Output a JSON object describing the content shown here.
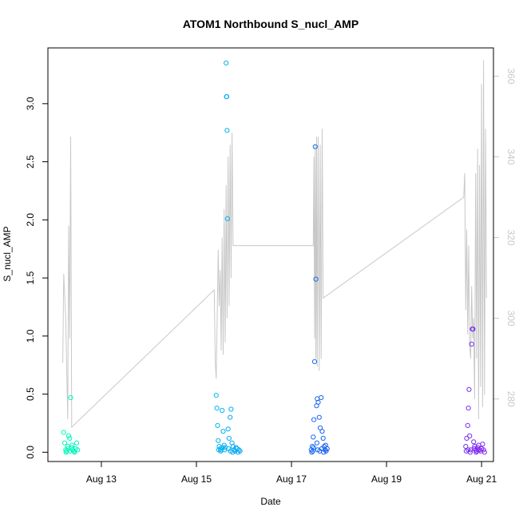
{
  "chart_data": {
    "type": "scatter",
    "title": "ATOM1 Northbound S_nucl_AMP",
    "xlabel": "Date",
    "ylabel": "S_nucl_AMP",
    "ylabel_right": "",
    "xlim": [
      "2024-08-11T21:00",
      "2024-08-21T06:00"
    ],
    "ylim": [
      -0.08,
      3.48
    ],
    "ylim_right": [
      264.5,
      367
    ],
    "x_ticks": [
      {
        "label": "Aug 13",
        "value": "2024-08-13T00:00"
      },
      {
        "label": "Aug 15",
        "value": "2024-08-15T00:00"
      },
      {
        "label": "Aug 17",
        "value": "2024-08-17T00:00"
      },
      {
        "label": "Aug 19",
        "value": "2024-08-19T00:00"
      },
      {
        "label": "Aug 21",
        "value": "2024-08-21T00:00"
      }
    ],
    "y_ticks": [
      "0.0",
      "0.5",
      "1.0",
      "1.5",
      "2.0",
      "2.5",
      "3.0"
    ],
    "y_ticks_right": [
      "280",
      "300",
      "320",
      "340",
      "360"
    ],
    "grid": false,
    "colors": {
      "line": "#c8c8c8",
      "right_axis": "#c8c8c8",
      "point_gradient": [
        "#00ffb0",
        "#00c8f0",
        "#1e50f0",
        "#8c28f0"
      ]
    },
    "series": [
      {
        "kind": "points",
        "axis": "left",
        "points": [
          [
            "2024-08-12T05:00",
            0.17
          ],
          [
            "2024-08-12T05:30",
            0.08
          ],
          [
            "2024-08-12T06:00",
            0.02
          ],
          [
            "2024-08-12T06:30",
            0.01
          ],
          [
            "2024-08-12T07:00",
            0.05
          ],
          [
            "2024-08-12T07:30",
            0.14
          ],
          [
            "2024-08-12T08:00",
            0.12
          ],
          [
            "2024-08-12T08:30",
            0.47
          ],
          [
            "2024-08-12T09:00",
            0.04
          ],
          [
            "2024-08-12T09:30",
            0.02
          ],
          [
            "2024-08-12T10:00",
            0.01
          ],
          [
            "2024-08-12T10:30",
            0.0
          ],
          [
            "2024-08-12T11:00",
            0.03
          ],
          [
            "2024-08-12T11:30",
            0.08
          ],
          [
            "2024-08-12T12:00",
            0.02
          ],
          [
            "2024-08-12T06:10",
            0.0
          ],
          [
            "2024-08-12T07:10",
            0.03
          ],
          [
            "2024-08-12T08:10",
            0.01
          ],
          [
            "2024-08-12T09:10",
            0.06
          ],
          [
            "2024-08-12T10:10",
            0.01
          ],
          [
            "2024-08-15T10:00",
            0.49
          ],
          [
            "2024-08-15T10:20",
            0.38
          ],
          [
            "2024-08-15T10:40",
            0.23
          ],
          [
            "2024-08-15T11:00",
            0.1
          ],
          [
            "2024-08-15T11:30",
            0.05
          ],
          [
            "2024-08-15T12:00",
            0.03
          ],
          [
            "2024-08-15T12:30",
            0.02
          ],
          [
            "2024-08-15T13:00",
            0.36
          ],
          [
            "2024-08-15T13:30",
            0.18
          ],
          [
            "2024-08-15T14:00",
            0.06
          ],
          [
            "2024-08-15T14:30",
            0.04
          ],
          [
            "2024-08-15T15:00",
            3.35
          ],
          [
            "2024-08-15T15:10",
            3.06
          ],
          [
            "2024-08-15T15:20",
            3.06
          ],
          [
            "2024-08-15T15:30",
            2.77
          ],
          [
            "2024-08-15T15:40",
            2.01
          ],
          [
            "2024-08-15T16:00",
            0.2
          ],
          [
            "2024-08-15T16:30",
            0.12
          ],
          [
            "2024-08-15T17:00",
            0.3
          ],
          [
            "2024-08-15T17:30",
            0.37
          ],
          [
            "2024-08-15T18:00",
            0.08
          ],
          [
            "2024-08-15T18:30",
            0.05
          ],
          [
            "2024-08-15T19:00",
            0.02
          ],
          [
            "2024-08-15T19:30",
            0.01
          ],
          [
            "2024-08-15T20:00",
            0.04
          ],
          [
            "2024-08-15T20:30",
            0.03
          ],
          [
            "2024-08-15T21:00",
            0.0
          ],
          [
            "2024-08-15T21:30",
            0.02
          ],
          [
            "2024-08-15T22:00",
            0.01
          ],
          [
            "2024-08-15T11:15",
            0.02
          ],
          [
            "2024-08-15T12:15",
            0.01
          ],
          [
            "2024-08-15T13:15",
            0.04
          ],
          [
            "2024-08-15T14:15",
            0.02
          ],
          [
            "2024-08-15T16:15",
            0.03
          ],
          [
            "2024-08-15T17:15",
            0.01
          ],
          [
            "2024-08-15T18:15",
            0.0
          ],
          [
            "2024-08-17T10:00",
            0.02
          ],
          [
            "2024-08-17T10:30",
            0.05
          ],
          [
            "2024-08-17T11:00",
            0.13
          ],
          [
            "2024-08-17T11:20",
            0.28
          ],
          [
            "2024-08-17T11:40",
            0.78
          ],
          [
            "2024-08-17T12:00",
            2.63
          ],
          [
            "2024-08-17T12:20",
            1.49
          ],
          [
            "2024-08-17T12:40",
            0.4
          ],
          [
            "2024-08-17T13:00",
            0.46
          ],
          [
            "2024-08-17T13:30",
            0.43
          ],
          [
            "2024-08-17T14:00",
            0.3
          ],
          [
            "2024-08-17T14:30",
            0.21
          ],
          [
            "2024-08-17T15:00",
            0.47
          ],
          [
            "2024-08-17T15:30",
            0.18
          ],
          [
            "2024-08-17T16:00",
            0.12
          ],
          [
            "2024-08-17T16:30",
            0.05
          ],
          [
            "2024-08-17T17:00",
            0.02
          ],
          [
            "2024-08-17T17:30",
            0.01
          ],
          [
            "2024-08-17T18:00",
            0.03
          ],
          [
            "2024-08-17T10:15",
            0.0
          ],
          [
            "2024-08-17T10:45",
            0.01
          ],
          [
            "2024-08-17T11:10",
            0.04
          ],
          [
            "2024-08-17T13:15",
            0.02
          ],
          [
            "2024-08-17T14:15",
            0.01
          ],
          [
            "2024-08-17T15:15",
            0.03
          ],
          [
            "2024-08-17T16:15",
            0.0
          ],
          [
            "2024-08-17T17:15",
            0.06
          ],
          [
            "2024-08-17T12:50",
            0.08
          ],
          [
            "2024-08-20T16:00",
            0.05
          ],
          [
            "2024-08-20T16:30",
            0.12
          ],
          [
            "2024-08-20T17:00",
            0.23
          ],
          [
            "2024-08-20T17:20",
            0.38
          ],
          [
            "2024-08-20T17:40",
            0.54
          ],
          [
            "2024-08-20T18:00",
            0.14
          ],
          [
            "2024-08-20T18:30",
            0.02
          ],
          [
            "2024-08-20T19:00",
            0.93
          ],
          [
            "2024-08-20T19:20",
            1.06
          ],
          [
            "2024-08-20T19:40",
            1.06
          ],
          [
            "2024-08-20T20:00",
            0.09
          ],
          [
            "2024-08-20T20:30",
            0.05
          ],
          [
            "2024-08-20T21:00",
            0.02
          ],
          [
            "2024-08-20T21:30",
            0.01
          ],
          [
            "2024-08-20T22:00",
            0.04
          ],
          [
            "2024-08-20T22:30",
            0.06
          ],
          [
            "2024-08-20T23:00",
            0.02
          ],
          [
            "2024-08-20T23:30",
            0.01
          ],
          [
            "2024-08-21T00:00",
            0.03
          ],
          [
            "2024-08-21T00:30",
            0.07
          ],
          [
            "2024-08-21T01:00",
            0.02
          ],
          [
            "2024-08-21T01:30",
            0.0
          ],
          [
            "2024-08-20T16:15",
            0.01
          ],
          [
            "2024-08-20T17:10",
            0.02
          ],
          [
            "2024-08-20T18:15",
            0.0
          ],
          [
            "2024-08-20T20:15",
            0.03
          ],
          [
            "2024-08-20T21:15",
            0.0
          ],
          [
            "2024-08-20T22:15",
            0.02
          ]
        ]
      },
      {
        "kind": "line",
        "axis": "right",
        "points": [
          [
            "2024-08-12T04:30",
            289
          ],
          [
            "2024-08-12T05:00",
            311
          ],
          [
            "2024-08-12T06:00",
            300
          ],
          [
            "2024-08-12T07:00",
            275
          ],
          [
            "2024-08-12T07:30",
            323
          ],
          [
            "2024-08-12T08:00",
            295
          ],
          [
            "2024-08-12T08:30",
            345
          ],
          [
            "2024-08-12T09:00",
            273
          ],
          [
            "2024-08-15T09:00",
            307
          ],
          [
            "2024-08-15T09:30",
            289
          ],
          [
            "2024-08-15T10:00",
            285
          ],
          [
            "2024-08-15T10:30",
            300
          ],
          [
            "2024-08-15T11:00",
            317
          ],
          [
            "2024-08-15T11:30",
            303
          ],
          [
            "2024-08-15T12:00",
            312
          ],
          [
            "2024-08-15T12:30",
            292
          ],
          [
            "2024-08-15T13:00",
            320
          ],
          [
            "2024-08-15T13:30",
            291
          ],
          [
            "2024-08-15T14:00",
            327
          ],
          [
            "2024-08-15T14:30",
            294
          ],
          [
            "2024-08-15T15:00",
            333
          ],
          [
            "2024-08-15T15:30",
            300
          ],
          [
            "2024-08-15T16:00",
            340
          ],
          [
            "2024-08-15T16:30",
            303
          ],
          [
            "2024-08-15T17:00",
            343
          ],
          [
            "2024-08-15T17:30",
            310
          ],
          [
            "2024-08-15T18:00",
            346
          ],
          [
            "2024-08-15T18:30",
            318
          ],
          [
            "2024-08-17T11:00",
            318
          ],
          [
            "2024-08-17T11:20",
            340
          ],
          [
            "2024-08-17T11:40",
            295
          ],
          [
            "2024-08-17T12:00",
            343
          ],
          [
            "2024-08-17T12:20",
            290
          ],
          [
            "2024-08-17T12:40",
            345
          ],
          [
            "2024-08-17T13:00",
            288
          ],
          [
            "2024-08-17T13:30",
            345
          ],
          [
            "2024-08-17T14:00",
            287
          ],
          [
            "2024-08-17T14:30",
            343
          ],
          [
            "2024-08-17T15:00",
            290
          ],
          [
            "2024-08-17T15:30",
            347
          ],
          [
            "2024-08-17T16:00",
            305
          ],
          [
            "2024-08-20T15:00",
            330
          ],
          [
            "2024-08-20T15:30",
            336
          ],
          [
            "2024-08-20T16:00",
            302
          ],
          [
            "2024-08-20T16:30",
            322
          ],
          [
            "2024-08-20T17:00",
            296
          ],
          [
            "2024-08-20T17:30",
            318
          ],
          [
            "2024-08-20T18:00",
            293
          ],
          [
            "2024-08-20T18:30",
            290
          ],
          [
            "2024-08-20T19:00",
            308
          ],
          [
            "2024-08-20T19:30",
            295
          ],
          [
            "2024-08-20T20:00",
            300
          ],
          [
            "2024-08-20T20:30",
            280
          ],
          [
            "2024-08-20T21:00",
            336
          ],
          [
            "2024-08-20T21:30",
            290
          ],
          [
            "2024-08-20T22:00",
            342
          ],
          [
            "2024-08-20T22:30",
            275
          ],
          [
            "2024-08-20T23:00",
            338
          ],
          [
            "2024-08-20T23:30",
            283
          ],
          [
            "2024-08-21T00:00",
            358
          ],
          [
            "2024-08-21T00:30",
            278
          ],
          [
            "2024-08-21T01:00",
            364
          ],
          [
            "2024-08-21T01:30",
            281
          ],
          [
            "2024-08-21T02:00",
            347
          ],
          [
            "2024-08-21T02:30",
            305
          ]
        ]
      }
    ]
  }
}
